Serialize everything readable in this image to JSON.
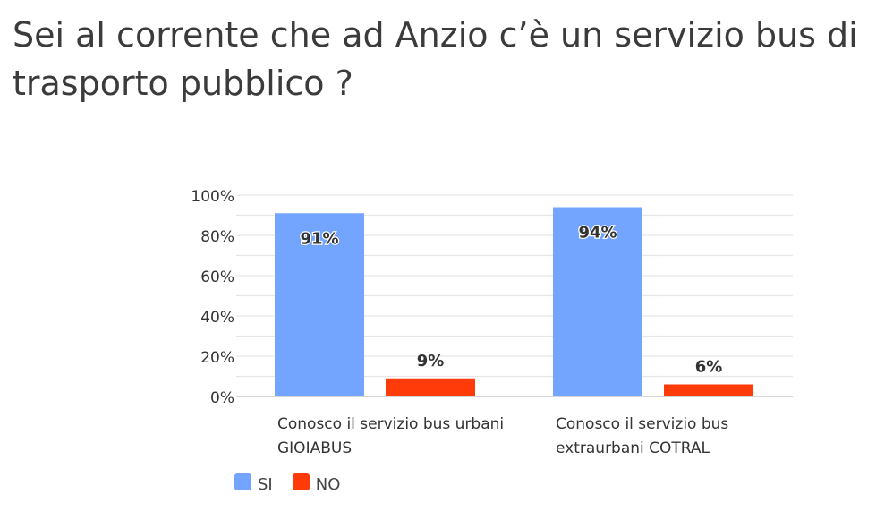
{
  "title": "Sei al corrente che ad Anzio c’è un servizio bus di trasporto pubblico ?",
  "chart_data": {
    "type": "bar",
    "categories": [
      [
        "Conosco il servizio bus urbani",
        "GIOIABUS"
      ],
      [
        "Conosco il servizio bus",
        "extraurbani COTRAL"
      ]
    ],
    "series": [
      {
        "name": "SI",
        "values": [
          91,
          94
        ],
        "labels": [
          "91%",
          "94%"
        ],
        "color": "#73a5ff"
      },
      {
        "name": "NO",
        "values": [
          9,
          6
        ],
        "labels": [
          "9%",
          "6%"
        ],
        "color": "#ff3b0a"
      }
    ],
    "ylim": [
      0,
      100
    ],
    "yticks": [
      0,
      20,
      40,
      60,
      80,
      100
    ],
    "ytick_labels": [
      "0%",
      "20%",
      "40%",
      "60%",
      "80%",
      "100%"
    ],
    "grid": true,
    "legend_position": "bottom-left"
  }
}
